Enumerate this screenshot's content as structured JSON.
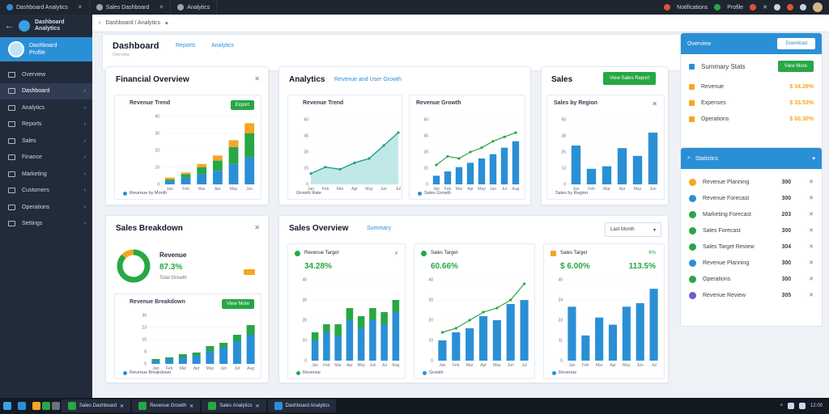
{
  "browser": {
    "tabs": [
      {
        "label": "Dashboard Analytics"
      },
      {
        "label": "Sales Dashboard"
      },
      {
        "label": "Analytics"
      }
    ],
    "right_labels": [
      "Notifications",
      "Profile"
    ]
  },
  "sidebar": {
    "brand_line1": "Dashboard",
    "brand_line2": "Analytics",
    "profile_line1": "Dashboard",
    "profile_line2": "Profile",
    "items": [
      {
        "label": "Overview"
      },
      {
        "label": "Dashboard"
      },
      {
        "label": "Analytics"
      },
      {
        "label": "Reports"
      },
      {
        "label": "Sales"
      },
      {
        "label": "Finance"
      },
      {
        "label": "Marketing"
      },
      {
        "label": "Customers"
      },
      {
        "label": "Operations"
      },
      {
        "label": "Settings"
      }
    ]
  },
  "address": {
    "text": "Dashboard / Analytics"
  },
  "header": {
    "title": "Dashboard",
    "subtitle": "Overview",
    "link1": "Reports",
    "link2": "Analytics"
  },
  "cards": {
    "c1": {
      "title": "Financial Overview",
      "inner_title": "Revenue Trend",
      "btn": "Export",
      "legend": "Revenue by Month"
    },
    "c2": {
      "title": "Analytics",
      "tag": "Revenue and User Growth",
      "inner_title": "Revenue Trend",
      "legend": "Growth Rate"
    },
    "c3": {
      "inner_title": "Revenue Growth",
      "legend": "Sales Growth"
    },
    "c4": {
      "title": "Sales",
      "btn": "View Sales Report",
      "inner_title": "Sales by Region",
      "legend": "Sales by Region"
    },
    "c5": {
      "title": "Sales Breakdown",
      "donut_title": "Revenue",
      "donut_value": "87.3%",
      "donut_sub": "Total Growth",
      "inner_title": "Revenue Breakdown",
      "btn": "View More",
      "legend": "Revenue Breakdown"
    },
    "c6": {
      "title": "Sales Overview",
      "link": "Summary",
      "select": "Last Month"
    },
    "m1": {
      "title": "Revenue Target",
      "value": "34.28%",
      "legend": "Revenue"
    },
    "m2": {
      "title": "Sales Target",
      "value": "60.66%",
      "legend": "Growth"
    },
    "m3": {
      "title": "Sales Target",
      "value": "$ 6.00%",
      "value2": "113.5%",
      "pct": "6%",
      "legend": "Revenue"
    }
  },
  "right_panel": {
    "top": {
      "head": "Overview",
      "btn": "Download",
      "summary": "Summary Stats",
      "summary_btn": "View More",
      "rows": [
        {
          "label": "Revenue",
          "value": "$ 34.26%",
          "color": "#f5a623"
        },
        {
          "label": "Expenses",
          "value": "$ 33.53%",
          "color": "#f5a623"
        },
        {
          "label": "Operations",
          "value": "$ 60.30%",
          "color": "#f5a623"
        }
      ]
    },
    "bottom": {
      "head": "Statistics",
      "rows": [
        {
          "label": "Revenue Planning",
          "value": "300",
          "color": "#f5a623"
        },
        {
          "label": "Revenue Forecast",
          "value": "300",
          "color": "#2b8fd6"
        },
        {
          "label": "Marketing Forecast",
          "value": "203",
          "color": "#27a745"
        },
        {
          "label": "Sales Forecast",
          "value": "300",
          "color": "#27a745"
        },
        {
          "label": "Sales Target Review",
          "value": "304",
          "color": "#27a745"
        },
        {
          "label": "Revenue Planning",
          "value": "300",
          "color": "#2b8fd6"
        },
        {
          "label": "Operations",
          "value": "300",
          "color": "#27a745"
        },
        {
          "label": "Revenue Review",
          "value": "305",
          "color": "#6b5bd6"
        }
      ]
    }
  },
  "taskbar": {
    "items": [
      {
        "label": "Sales Dashboard"
      },
      {
        "label": "Revenue Growth"
      },
      {
        "label": "Sales Analytics"
      },
      {
        "label": "Dashboard Analytics"
      }
    ],
    "time": "12:00"
  },
  "colors": {
    "accent": "#2b8fd6",
    "green": "#27a745",
    "orange": "#f5a623"
  },
  "chart_data": [
    {
      "type": "bar",
      "name": "c1-stacked",
      "categories": [
        "Jan",
        "Feb",
        "Mar",
        "Apr",
        "May",
        "Jun"
      ],
      "series": [
        {
          "values": [
            2,
            4,
            6,
            8,
            12,
            16
          ]
        },
        {
          "values": [
            1,
            2,
            4,
            6,
            10,
            14
          ]
        },
        {
          "values": [
            1,
            1,
            2,
            3,
            4,
            6
          ]
        }
      ],
      "ylim": [
        0,
        40
      ]
    },
    {
      "type": "area",
      "name": "c2-area",
      "x": [
        "Jan",
        "Feb",
        "Mar",
        "Apr",
        "May",
        "Jun",
        "Jul"
      ],
      "values": [
        10,
        16,
        14,
        20,
        24,
        36,
        48
      ],
      "ylim": [
        0,
        60
      ]
    },
    {
      "type": "bar",
      "name": "c3-bar-line",
      "categories": [
        "Jan",
        "Feb",
        "Mar",
        "Apr",
        "May",
        "Jun",
        "Jul",
        "Aug"
      ],
      "values": [
        8,
        12,
        16,
        20,
        24,
        28,
        34,
        40
      ],
      "line": [
        18,
        26,
        24,
        30,
        34,
        40,
        44,
        48
      ],
      "ylim": [
        0,
        60
      ]
    },
    {
      "type": "bar",
      "name": "c4-bars",
      "categories": [
        "Jan",
        "Feb",
        "Mar",
        "Apr",
        "May",
        "Jun"
      ],
      "values": [
        30,
        12,
        14,
        28,
        22,
        40
      ],
      "ylim": [
        0,
        50
      ]
    },
    {
      "type": "pie",
      "name": "c5-donut",
      "values": [
        87.3,
        12.7
      ]
    },
    {
      "type": "bar",
      "name": "c5-bars",
      "categories": [
        "Jan",
        "Feb",
        "Mar",
        "Apr",
        "May",
        "Jun",
        "Jul",
        "Aug"
      ],
      "series": [
        {
          "values": [
            2,
            3,
            4,
            5,
            8,
            10,
            14,
            18
          ]
        },
        {
          "values": [
            1,
            1,
            2,
            2,
            3,
            3,
            4,
            6
          ]
        }
      ],
      "ylim": [
        0,
        30
      ]
    },
    {
      "type": "bar",
      "name": "m1-bars",
      "categories": [
        "Jan",
        "Feb",
        "Mar",
        "Apr",
        "May",
        "Jun",
        "Jul",
        "Aug"
      ],
      "series": [
        {
          "values": [
            10,
            14,
            12,
            20,
            16,
            20,
            18,
            24
          ]
        },
        {
          "values": [
            4,
            4,
            6,
            6,
            6,
            6,
            6,
            6
          ]
        }
      ],
      "ylim": [
        0,
        40
      ]
    },
    {
      "type": "bar",
      "name": "m2-bars",
      "categories": [
        "Jan",
        "Feb",
        "Mar",
        "Apr",
        "May",
        "Jun",
        "Jul"
      ],
      "values": [
        10,
        14,
        16,
        22,
        20,
        28,
        30
      ],
      "line": [
        14,
        16,
        20,
        24,
        26,
        30,
        38
      ],
      "ylim": [
        0,
        40
      ]
    },
    {
      "type": "bar",
      "name": "m3-bars",
      "categories": [
        "Jan",
        "Feb",
        "Mar",
        "Apr",
        "May",
        "Jun",
        "Jul"
      ],
      "values": [
        30,
        14,
        24,
        20,
        30,
        32,
        40
      ],
      "ylim": [
        0,
        45
      ]
    }
  ]
}
